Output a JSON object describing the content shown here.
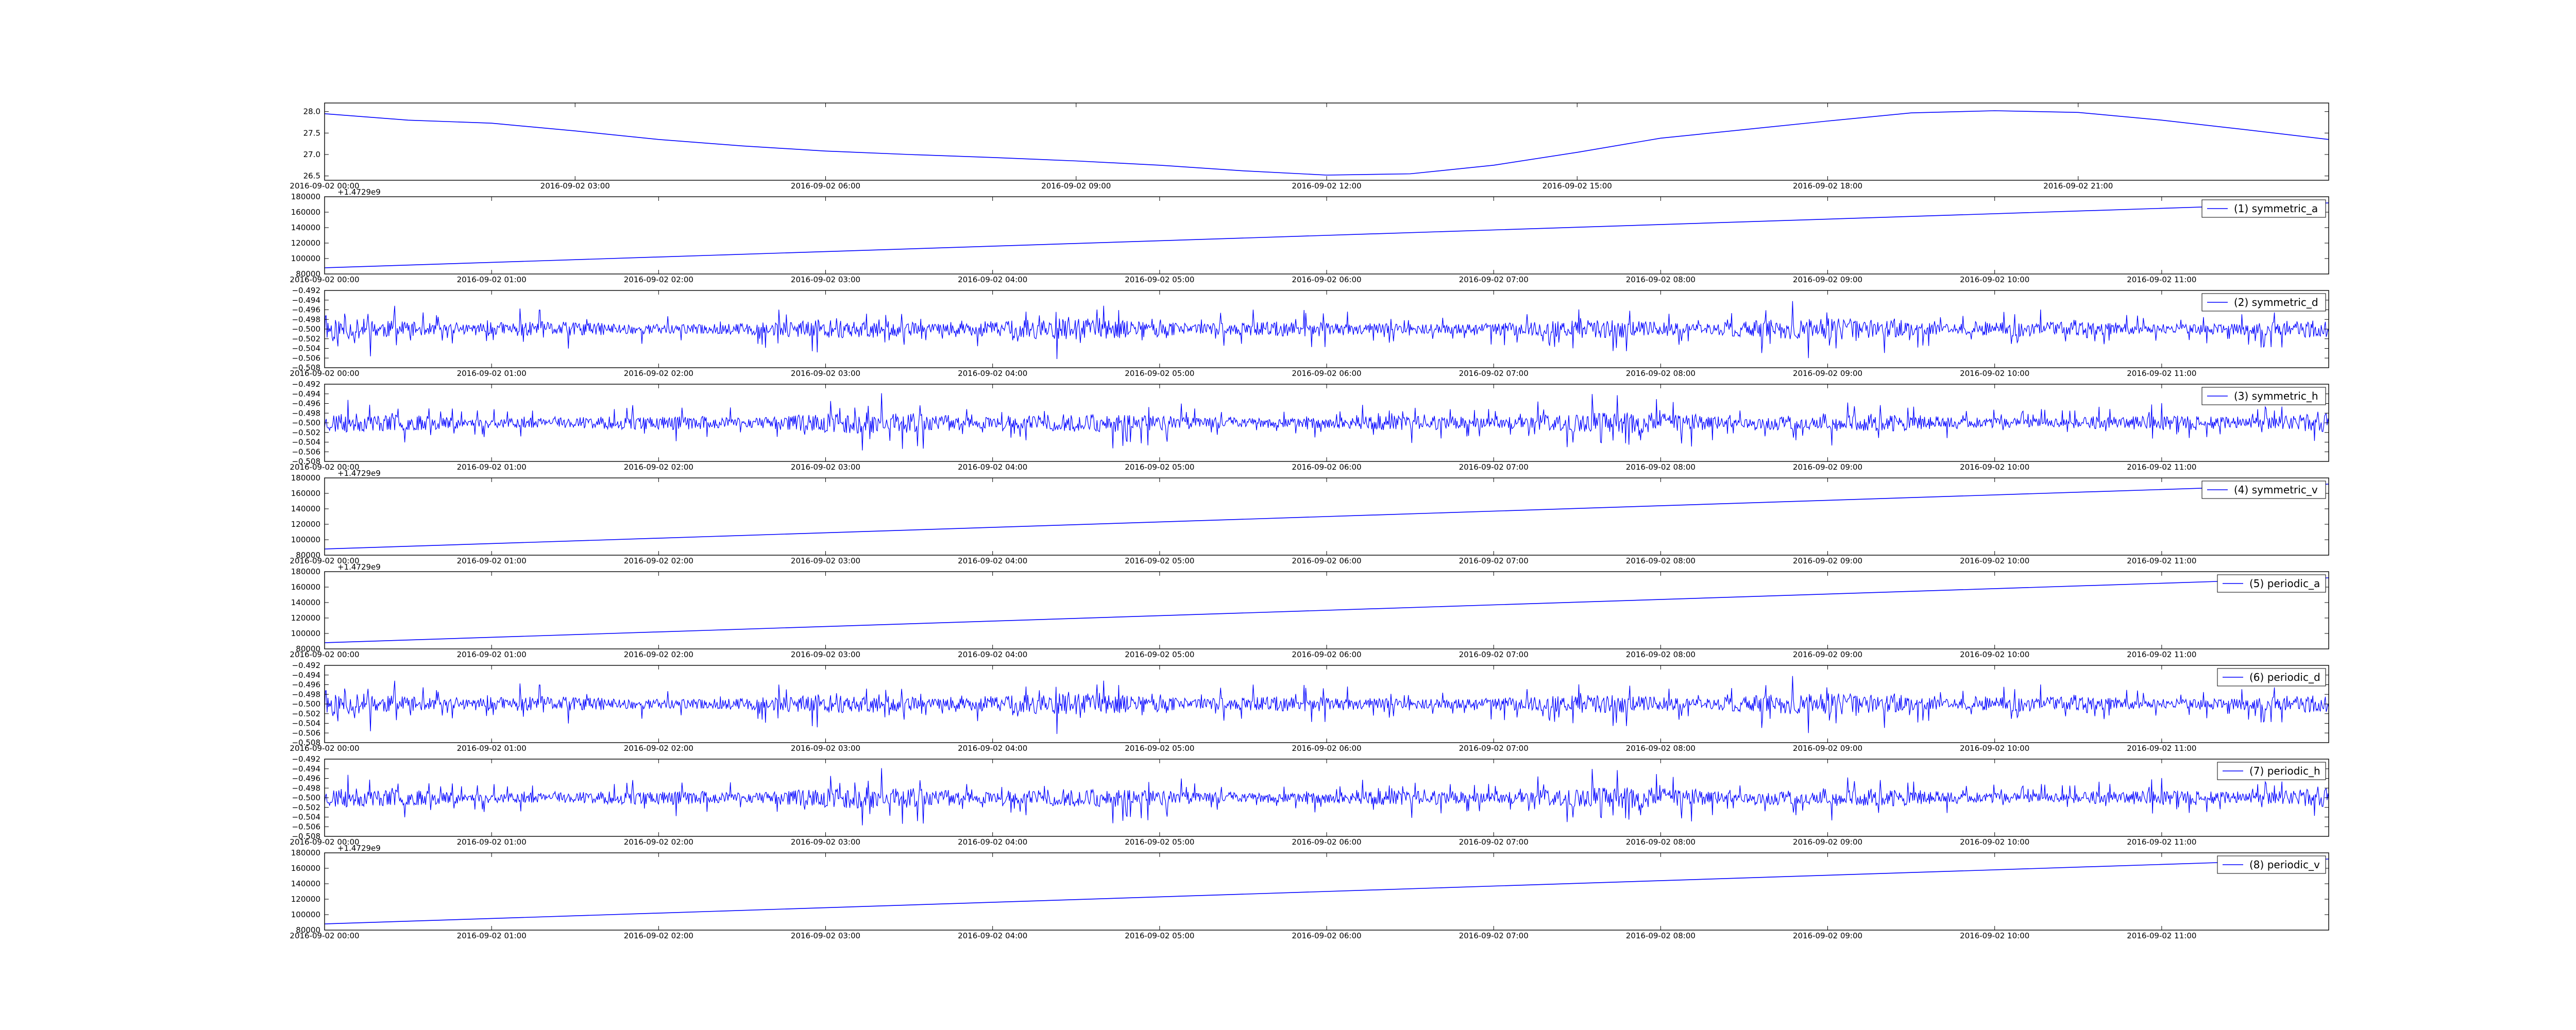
{
  "colors": {
    "line": "#0000ff",
    "axes": "#000000",
    "background": "#ffffff"
  },
  "chart_data": [
    {
      "type": "line",
      "panel": 0,
      "name": "",
      "x_ticks": [
        "2016-09-02 00:00",
        "2016-09-02 03:00",
        "2016-09-02 06:00",
        "2016-09-02 09:00",
        "2016-09-02 12:00",
        "2016-09-02 15:00",
        "2016-09-02 18:00",
        "2016-09-02 21:00"
      ],
      "xlim": [
        0,
        24
      ],
      "ylim": [
        26.4,
        28.2
      ],
      "y_ticks": [
        "26.5",
        "27.0",
        "27.5",
        "28.0"
      ],
      "y_tick_values": [
        26.5,
        27.0,
        27.5,
        28.0
      ],
      "x": [
        0,
        1,
        2,
        3,
        4,
        5,
        6,
        7,
        8,
        9,
        10,
        11,
        12,
        13,
        14,
        15,
        16,
        17,
        18,
        19,
        20,
        21,
        22,
        23,
        24
      ],
      "y": [
        27.95,
        27.8,
        27.73,
        27.55,
        27.35,
        27.2,
        27.08,
        27.0,
        26.93,
        26.85,
        26.75,
        26.62,
        26.52,
        26.55,
        26.75,
        27.05,
        27.38,
        27.58,
        27.78,
        27.97,
        28.02,
        27.98,
        27.8,
        27.58,
        27.35
      ],
      "offset_text": ""
    },
    {
      "type": "line",
      "panel": 1,
      "name": "(1) symmetric_a",
      "legend": "top-right",
      "x_ticks": [
        "2016-09-02 00:00",
        "2016-09-02 01:00",
        "2016-09-02 02:00",
        "2016-09-02 03:00",
        "2016-09-02 04:00",
        "2016-09-02 05:00",
        "2016-09-02 06:00",
        "2016-09-02 07:00",
        "2016-09-02 08:00",
        "2016-09-02 09:00",
        "2016-09-02 10:00",
        "2016-09-02 11:00"
      ],
      "xlim": [
        0,
        12
      ],
      "ylim": [
        80000,
        180000
      ],
      "y_ticks": [
        "80000",
        "100000",
        "120000",
        "140000",
        "160000",
        "180000"
      ],
      "y_tick_values": [
        80000,
        100000,
        120000,
        140000,
        160000,
        180000
      ],
      "x": [
        0,
        12
      ],
      "y": [
        88000,
        172000
      ],
      "offset_text": "+1.4729e9"
    },
    {
      "type": "line",
      "panel": 2,
      "name": "(2) symmetric_d",
      "legend": "top-right",
      "noise": true,
      "x_ticks": [
        "2016-09-02 00:00",
        "2016-09-02 01:00",
        "2016-09-02 02:00",
        "2016-09-02 03:00",
        "2016-09-02 04:00",
        "2016-09-02 05:00",
        "2016-09-02 06:00",
        "2016-09-02 07:00",
        "2016-09-02 08:00",
        "2016-09-02 09:00",
        "2016-09-02 10:00",
        "2016-09-02 11:00"
      ],
      "xlim": [
        0,
        12
      ],
      "ylim": [
        -0.508,
        -0.492
      ],
      "y_ticks": [
        "−0.492",
        "−0.494",
        "−0.496",
        "−0.498",
        "−0.500",
        "−0.502",
        "−0.504",
        "−0.506",
        "−0.508"
      ],
      "y_tick_values": [
        -0.492,
        -0.494,
        -0.496,
        -0.498,
        -0.5,
        -0.502,
        -0.504,
        -0.506,
        -0.508
      ],
      "center": -0.5,
      "amplitude": 0.004,
      "seed": 11,
      "offset_text": ""
    },
    {
      "type": "line",
      "panel": 3,
      "name": "(3) symmetric_h",
      "legend": "top-right",
      "noise": true,
      "x_ticks": [
        "2016-09-02 00:00",
        "2016-09-02 01:00",
        "2016-09-02 02:00",
        "2016-09-02 03:00",
        "2016-09-02 04:00",
        "2016-09-02 05:00",
        "2016-09-02 06:00",
        "2016-09-02 07:00",
        "2016-09-02 08:00",
        "2016-09-02 09:00",
        "2016-09-02 10:00",
        "2016-09-02 11:00"
      ],
      "xlim": [
        0,
        12
      ],
      "ylim": [
        -0.508,
        -0.492
      ],
      "y_ticks": [
        "−0.492",
        "−0.494",
        "−0.496",
        "−0.498",
        "−0.500",
        "−0.502",
        "−0.504",
        "−0.506",
        "−0.508"
      ],
      "y_tick_values": [
        -0.492,
        -0.494,
        -0.496,
        -0.498,
        -0.5,
        -0.502,
        -0.504,
        -0.506,
        -0.508
      ],
      "center": -0.5,
      "amplitude": 0.004,
      "seed": 23,
      "offset_text": ""
    },
    {
      "type": "line",
      "panel": 4,
      "name": "(4) symmetric_v",
      "legend": "top-right",
      "x_ticks": [
        "2016-09-02 00:00",
        "2016-09-02 01:00",
        "2016-09-02 02:00",
        "2016-09-02 03:00",
        "2016-09-02 04:00",
        "2016-09-02 05:00",
        "2016-09-02 06:00",
        "2016-09-02 07:00",
        "2016-09-02 08:00",
        "2016-09-02 09:00",
        "2016-09-02 10:00",
        "2016-09-02 11:00"
      ],
      "xlim": [
        0,
        12
      ],
      "ylim": [
        80000,
        180000
      ],
      "y_ticks": [
        "80000",
        "100000",
        "120000",
        "140000",
        "160000",
        "180000"
      ],
      "y_tick_values": [
        80000,
        100000,
        120000,
        140000,
        160000,
        180000
      ],
      "x": [
        0,
        12
      ],
      "y": [
        88000,
        172000
      ],
      "offset_text": "+1.4729e9"
    },
    {
      "type": "line",
      "panel": 5,
      "name": "(5) periodic_a",
      "legend": "top-right",
      "x_ticks": [
        "2016-09-02 00:00",
        "2016-09-02 01:00",
        "2016-09-02 02:00",
        "2016-09-02 03:00",
        "2016-09-02 04:00",
        "2016-09-02 05:00",
        "2016-09-02 06:00",
        "2016-09-02 07:00",
        "2016-09-02 08:00",
        "2016-09-02 09:00",
        "2016-09-02 10:00",
        "2016-09-02 11:00"
      ],
      "xlim": [
        0,
        12
      ],
      "ylim": [
        80000,
        180000
      ],
      "y_ticks": [
        "80000",
        "100000",
        "120000",
        "140000",
        "160000",
        "180000"
      ],
      "y_tick_values": [
        80000,
        100000,
        120000,
        140000,
        160000,
        180000
      ],
      "x": [
        0,
        12
      ],
      "y": [
        88000,
        172000
      ],
      "offset_text": "+1.4729e9"
    },
    {
      "type": "line",
      "panel": 6,
      "name": "(6) periodic_d",
      "legend": "top-right",
      "noise": true,
      "x_ticks": [
        "2016-09-02 00:00",
        "2016-09-02 01:00",
        "2016-09-02 02:00",
        "2016-09-02 03:00",
        "2016-09-02 04:00",
        "2016-09-02 05:00",
        "2016-09-02 06:00",
        "2016-09-02 07:00",
        "2016-09-02 08:00",
        "2016-09-02 09:00",
        "2016-09-02 10:00",
        "2016-09-02 11:00"
      ],
      "xlim": [
        0,
        12
      ],
      "ylim": [
        -0.508,
        -0.492
      ],
      "y_ticks": [
        "−0.492",
        "−0.494",
        "−0.496",
        "−0.498",
        "−0.500",
        "−0.502",
        "−0.504",
        "−0.506",
        "−0.508"
      ],
      "y_tick_values": [
        -0.492,
        -0.494,
        -0.496,
        -0.498,
        -0.5,
        -0.502,
        -0.504,
        -0.506,
        -0.508
      ],
      "center": -0.5,
      "amplitude": 0.004,
      "seed": 11,
      "offset_text": ""
    },
    {
      "type": "line",
      "panel": 7,
      "name": "(7) periodic_h",
      "legend": "top-right",
      "noise": true,
      "x_ticks": [
        "2016-09-02 00:00",
        "2016-09-02 01:00",
        "2016-09-02 02:00",
        "2016-09-02 03:00",
        "2016-09-02 04:00",
        "2016-09-02 05:00",
        "2016-09-02 06:00",
        "2016-09-02 07:00",
        "2016-09-02 08:00",
        "2016-09-02 09:00",
        "2016-09-02 10:00",
        "2016-09-02 11:00"
      ],
      "xlim": [
        0,
        12
      ],
      "ylim": [
        -0.508,
        -0.492
      ],
      "y_ticks": [
        "−0.492",
        "−0.494",
        "−0.496",
        "−0.498",
        "−0.500",
        "−0.502",
        "−0.504",
        "−0.506",
        "−0.508"
      ],
      "y_tick_values": [
        -0.492,
        -0.494,
        -0.496,
        -0.498,
        -0.5,
        -0.502,
        -0.504,
        -0.506,
        -0.508
      ],
      "center": -0.5,
      "amplitude": 0.004,
      "seed": 23,
      "offset_text": ""
    },
    {
      "type": "line",
      "panel": 8,
      "name": "(8) periodic_v",
      "legend": "top-right",
      "x_ticks": [
        "2016-09-02 00:00",
        "2016-09-02 01:00",
        "2016-09-02 02:00",
        "2016-09-02 03:00",
        "2016-09-02 04:00",
        "2016-09-02 05:00",
        "2016-09-02 06:00",
        "2016-09-02 07:00",
        "2016-09-02 08:00",
        "2016-09-02 09:00",
        "2016-09-02 10:00",
        "2016-09-02 11:00"
      ],
      "xlim": [
        0,
        12
      ],
      "ylim": [
        80000,
        180000
      ],
      "y_ticks": [
        "80000",
        "100000",
        "120000",
        "140000",
        "160000",
        "180000"
      ],
      "y_tick_values": [
        80000,
        100000,
        120000,
        140000,
        160000,
        180000
      ],
      "x": [
        0,
        12
      ],
      "y": [
        88000,
        172000
      ],
      "offset_text": "+1.4729e9"
    }
  ]
}
